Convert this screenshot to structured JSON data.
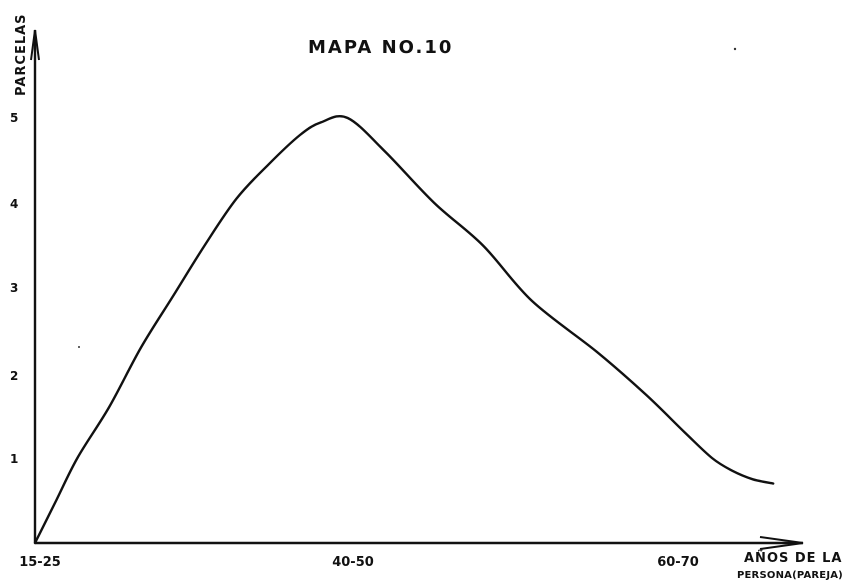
{
  "chart_data": {
    "type": "line",
    "title": "MAPA NO.10",
    "ylabel": "PARCELAS",
    "xlabel_line1": "AÑOS DE LA",
    "xlabel_line2": "PERSONA(PAREJA)",
    "x_tick_labels": [
      "15-25",
      "40-50",
      "60-70"
    ],
    "y_tick_labels": [
      "1",
      "2",
      "3",
      "4",
      "5"
    ],
    "ylim": [
      0,
      5
    ],
    "grid": false,
    "series": [
      {
        "points": [
          {
            "x": 15,
            "y": 0
          },
          {
            "x": 17,
            "y": 0.5
          },
          {
            "x": 19,
            "y": 1
          },
          {
            "x": 22,
            "y": 1.6
          },
          {
            "x": 25,
            "y": 2.3
          },
          {
            "x": 28,
            "y": 2.9
          },
          {
            "x": 31,
            "y": 3.5
          },
          {
            "x": 34,
            "y": 4.05
          },
          {
            "x": 37,
            "y": 4.45
          },
          {
            "x": 40,
            "y": 4.8
          },
          {
            "x": 42,
            "y": 4.95
          },
          {
            "x": 44.5,
            "y": 5.0
          },
          {
            "x": 47,
            "y": 4.6
          },
          {
            "x": 50,
            "y": 4.0
          },
          {
            "x": 53,
            "y": 3.5
          },
          {
            "x": 56,
            "y": 2.85
          },
          {
            "x": 60,
            "y": 2.25
          },
          {
            "x": 63,
            "y": 1.75
          },
          {
            "x": 66,
            "y": 1.3
          },
          {
            "x": 70,
            "y": 1.0
          },
          {
            "x": 73,
            "y": 0.85
          },
          {
            "x": 76,
            "y": 0.75
          },
          {
            "x": 79,
            "y": 0.7
          }
        ]
      }
    ]
  },
  "colors": {
    "ink": "#111111",
    "paper": "#ffffff"
  }
}
